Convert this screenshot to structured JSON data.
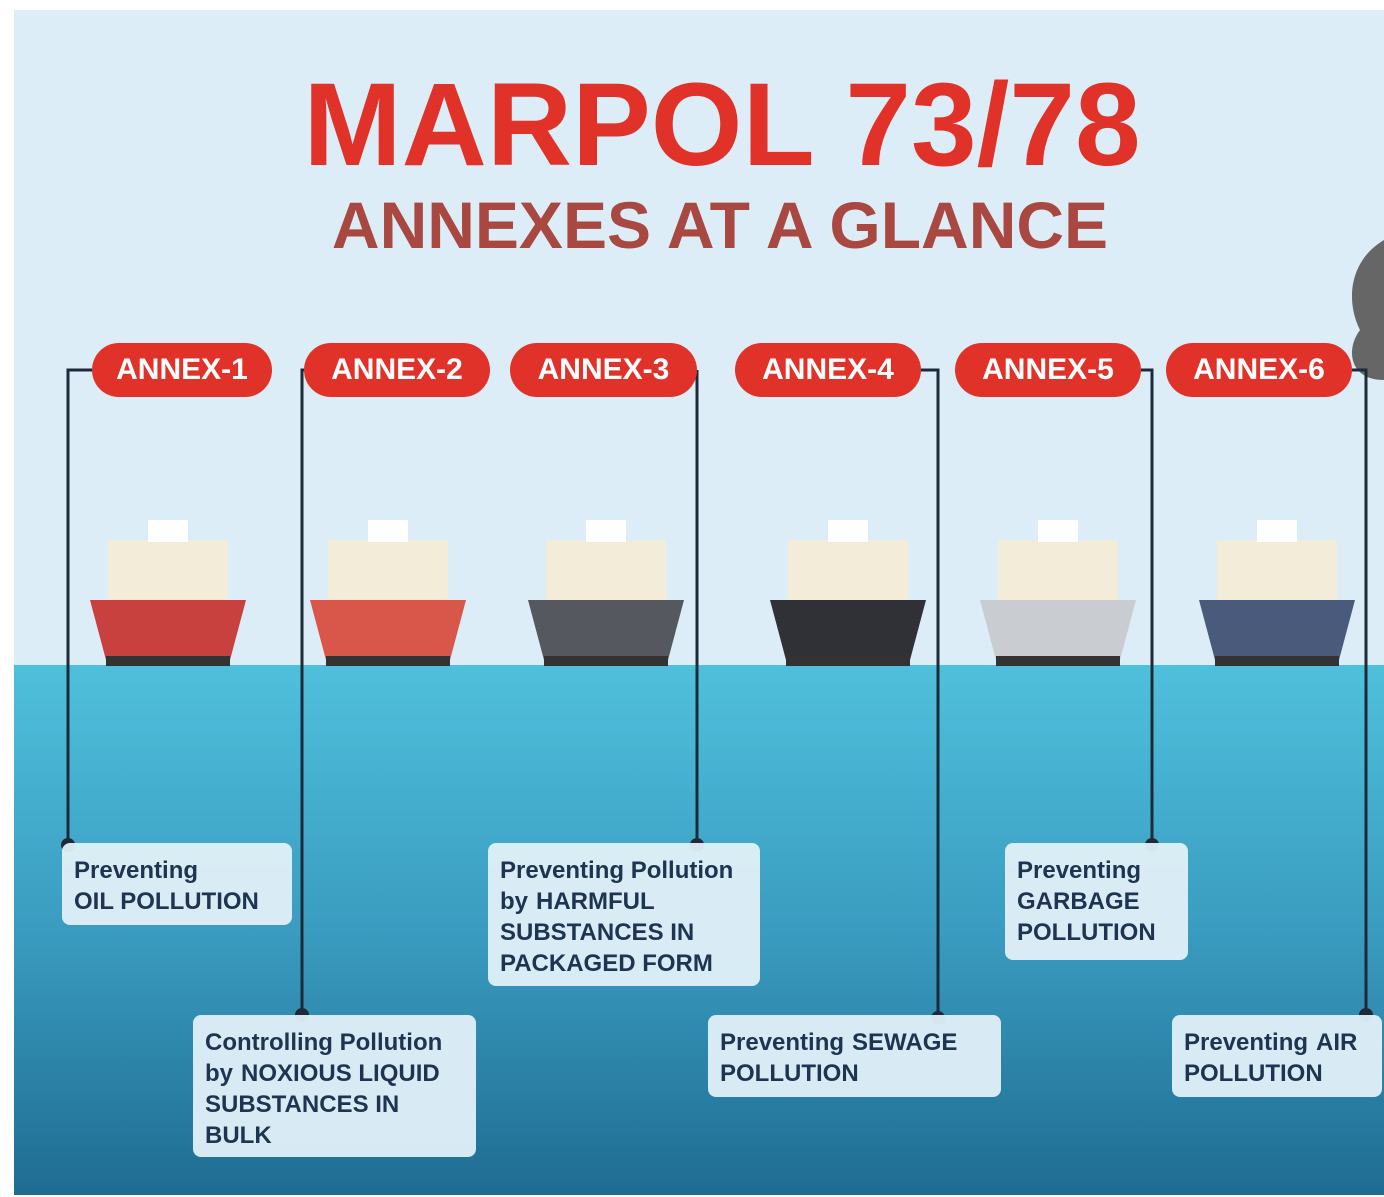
{
  "title": "MARPOL 73/78",
  "subtitle": "ANNEXES AT A GLANCE",
  "annexes": [
    {
      "label": "ANNEX-1",
      "lines": [
        [
          {
            "text": "Preventing",
            "bold": false
          }
        ],
        [
          {
            "text": "OIL POLLUTION",
            "bold": true
          }
        ]
      ]
    },
    {
      "label": "ANNEX-2",
      "lines": [
        [
          {
            "text": "Controlling Pollution",
            "bold": false
          }
        ],
        [
          {
            "text": "by",
            "bold": false
          },
          {
            "text": "NOXIOUS LIQUID",
            "bold": true
          }
        ],
        [
          {
            "text": "SUBSTANCES IN",
            "bold": true
          }
        ],
        [
          {
            "text": "BULK",
            "bold": true
          }
        ]
      ]
    },
    {
      "label": "ANNEX-3",
      "lines": [
        [
          {
            "text": "Preventing Pollution",
            "bold": false
          }
        ],
        [
          {
            "text": "by",
            "bold": false
          },
          {
            "text": "HARMFUL",
            "bold": true
          }
        ],
        [
          {
            "text": "SUBSTANCES IN",
            "bold": true
          }
        ],
        [
          {
            "text": "PACKAGED FORM",
            "bold": true
          }
        ]
      ]
    },
    {
      "label": "ANNEX-4",
      "lines": [
        [
          {
            "text": "Preventing",
            "bold": false
          },
          {
            "text": "SEWAGE",
            "bold": true
          }
        ],
        [
          {
            "text": "POLLUTION",
            "bold": true
          }
        ]
      ]
    },
    {
      "label": "ANNEX-5",
      "lines": [
        [
          {
            "text": "Preventing",
            "bold": false
          }
        ],
        [
          {
            "text": "GARBAGE",
            "bold": true
          }
        ],
        [
          {
            "text": "POLLUTION",
            "bold": true
          }
        ]
      ]
    },
    {
      "label": "ANNEX-6",
      "lines": [
        [
          {
            "text": "Preventing",
            "bold": false
          },
          {
            "text": "AIR",
            "bold": true
          }
        ],
        [
          {
            "text": "POLLUTION",
            "bold": true
          }
        ]
      ]
    }
  ]
}
